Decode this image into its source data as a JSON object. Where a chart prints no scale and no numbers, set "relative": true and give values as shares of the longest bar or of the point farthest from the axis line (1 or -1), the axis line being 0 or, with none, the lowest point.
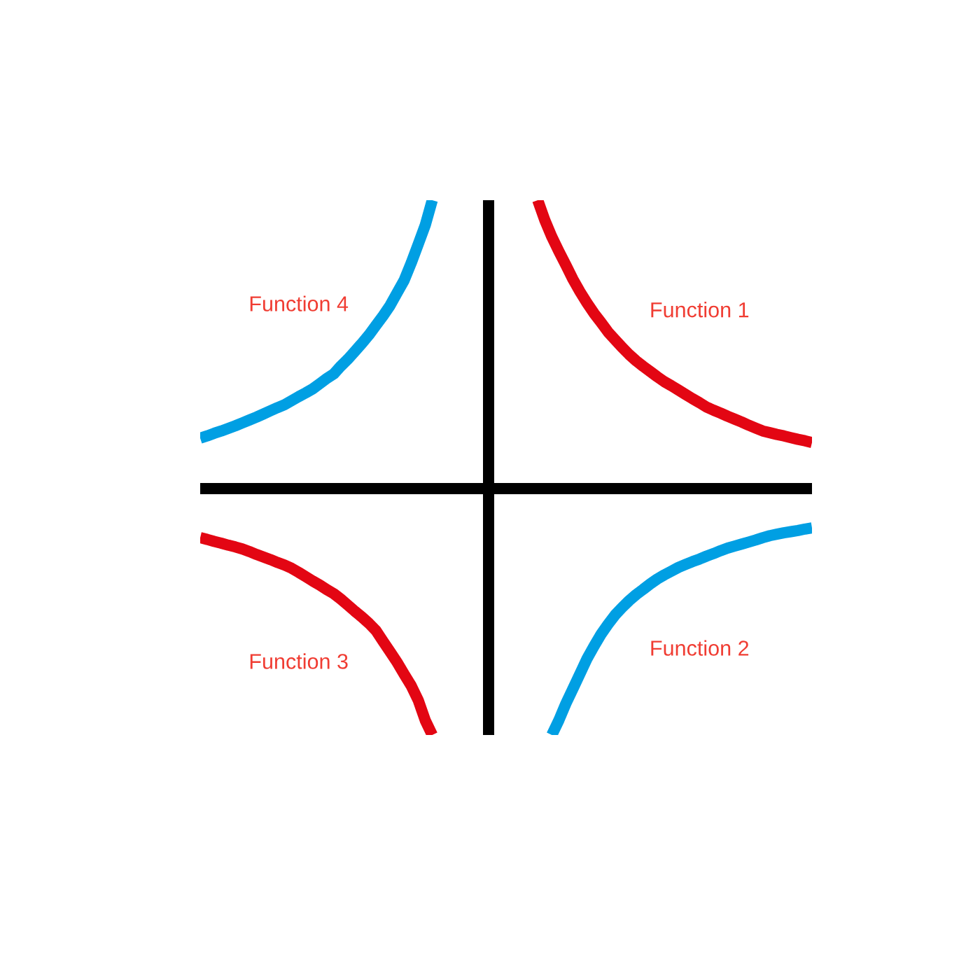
{
  "chart_data": {
    "type": "line",
    "relative": true,
    "line_style": "solid",
    "categories": [
      null,
      null,
      null,
      null,
      null,
      null,
      null,
      null,
      null,
      null,
      null,
      null,
      null,
      null,
      null,
      null,
      null,
      null,
      null,
      null,
      null,
      null,
      null,
      null,
      null,
      null,
      null,
      null,
      null,
      null,
      null,
      null,
      null,
      null,
      null,
      null,
      null,
      null,
      null,
      null,
      null,
      null,
      null,
      null,
      null,
      null,
      null,
      null,
      null,
      null,
      null,
      null,
      null,
      null,
      null,
      null,
      null,
      null,
      null,
      null,
      null,
      null,
      null,
      null,
      null,
      null,
      null,
      null,
      null,
      null,
      null,
      null,
      null,
      null,
      null,
      null,
      null,
      null,
      null,
      null,
      null,
      null,
      null,
      null,
      null,
      null,
      null,
      null
    ],
    "series": [
      {
        "name": "Function 1",
        "color": "#e30613",
        "values": [
          null,
          null,
          null,
          null,
          null,
          null,
          null,
          null,
          null,
          null,
          null,
          null,
          null,
          null,
          null,
          null,
          null,
          null,
          null,
          null,
          null,
          null,
          null,
          null,
          null,
          null,
          null,
          null,
          null,
          null,
          null,
          null,
          null,
          null,
          null,
          null,
          null,
          null,
          null,
          null,
          null,
          null,
          null,
          null,
          null,
          null,
          null,
          null,
          1.0,
          0.931,
          0.873,
          0.823,
          0.775,
          0.726,
          0.683,
          0.644,
          0.608,
          0.576,
          0.543,
          0.516,
          0.49,
          0.465,
          0.443,
          0.424,
          0.406,
          0.388,
          0.371,
          0.357,
          0.342,
          0.327,
          0.312,
          0.298,
          0.283,
          0.272,
          0.262,
          0.251,
          0.241,
          0.231,
          0.22,
          0.21,
          0.2,
          0.194,
          0.188,
          0.183,
          0.177,
          0.171,
          0.166,
          0.16
        ]
      },
      {
        "name": "Function 2",
        "color": "#009fe3",
        "values": [
          null,
          null,
          null,
          null,
          null,
          null,
          null,
          null,
          null,
          null,
          null,
          null,
          null,
          null,
          null,
          null,
          null,
          null,
          null,
          null,
          null,
          null,
          null,
          null,
          null,
          null,
          null,
          null,
          null,
          null,
          null,
          null,
          null,
          null,
          null,
          null,
          null,
          null,
          null,
          null,
          null,
          null,
          null,
          null,
          null,
          null,
          null,
          null,
          null,
          null,
          -0.854,
          -0.803,
          -0.745,
          -0.694,
          -0.642,
          -0.59,
          -0.546,
          -0.505,
          -0.47,
          -0.438,
          -0.412,
          -0.388,
          -0.367,
          -0.349,
          -0.33,
          -0.313,
          -0.299,
          -0.286,
          -0.273,
          -0.263,
          -0.253,
          -0.244,
          -0.234,
          -0.225,
          -0.215,
          -0.206,
          -0.199,
          -0.192,
          -0.185,
          -0.178,
          -0.17,
          -0.163,
          -0.158,
          -0.153,
          -0.149,
          -0.145,
          -0.14,
          -0.136
        ]
      },
      {
        "name": "Function 3",
        "color": "#e30613",
        "values": [
          -0.17,
          -0.176,
          -0.183,
          -0.189,
          -0.196,
          -0.202,
          -0.209,
          -0.218,
          -0.228,
          -0.237,
          -0.246,
          -0.256,
          -0.265,
          -0.276,
          -0.29,
          -0.305,
          -0.32,
          -0.334,
          -0.35,
          -0.364,
          -0.383,
          -0.404,
          -0.425,
          -0.445,
          -0.467,
          -0.492,
          -0.529,
          -0.565,
          -0.602,
          -0.643,
          -0.683,
          -0.733,
          -0.803,
          -0.854,
          null,
          null,
          null,
          null,
          null,
          null,
          null,
          null,
          null,
          null,
          null,
          null,
          null,
          null,
          null,
          null,
          null,
          null,
          null,
          null,
          null,
          null,
          null,
          null,
          null,
          null,
          null,
          null,
          null,
          null,
          null,
          null,
          null,
          null,
          null,
          null,
          null,
          null,
          null,
          null,
          null,
          null,
          null,
          null,
          null,
          null,
          null,
          null,
          null,
          null,
          null,
          null,
          null,
          null
        ]
      },
      {
        "name": "Function 4",
        "color": "#009fe3",
        "values": [
          0.175,
          0.183,
          0.192,
          0.2,
          0.209,
          0.218,
          0.228,
          0.238,
          0.248,
          0.259,
          0.27,
          0.281,
          0.291,
          0.305,
          0.319,
          0.332,
          0.346,
          0.364,
          0.382,
          0.398,
          0.425,
          0.449,
          0.476,
          0.504,
          0.533,
          0.566,
          0.599,
          0.635,
          0.679,
          0.722,
          0.782,
          0.847,
          0.913,
          1.0,
          null,
          null,
          null,
          null,
          null,
          null,
          null,
          null,
          null,
          null,
          null,
          null,
          null,
          null,
          null,
          null,
          null,
          null,
          null,
          null,
          null,
          null,
          null,
          null,
          null,
          null,
          null,
          null,
          null,
          null,
          null,
          null,
          null,
          null,
          null,
          null,
          null,
          null,
          null,
          null,
          null,
          null,
          null,
          null,
          null,
          null,
          null,
          null,
          null,
          null,
          null,
          null,
          null,
          null
        ]
      }
    ]
  }
}
